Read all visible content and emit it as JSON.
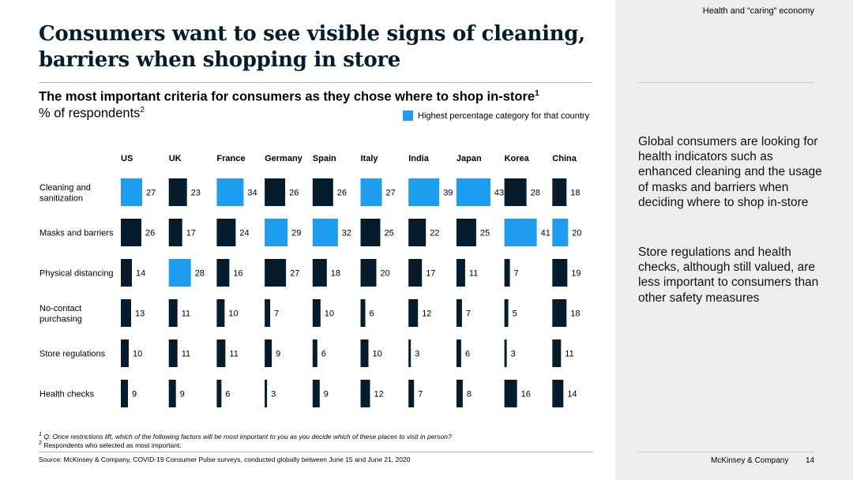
{
  "header": {
    "section": "Health and “caring” economy"
  },
  "title": "Consumers want to see visible signs of cleaning, barriers when shopping in store",
  "subtitle": "The most important criteria for consumers as they chose where to shop in-store",
  "subtitle_sup": "1",
  "unit": "% of respondents",
  "unit_sup": "2",
  "legend": {
    "label": "Highest percentage category for that country"
  },
  "sidebar": {
    "para1": "Global consumers are looking for health indicators such as enhanced cleaning and the usage of masks and barriers when deciding where to shop in-store",
    "para2": "Store regulations and health checks, although still valued, are less important to consumers than other safety measures"
  },
  "footnotes": {
    "fn1_mark": "1",
    "fn1": "Q: Once restrictions lift, which of the following factors will be most important to you as you decide which of these places to visit in person?",
    "fn2_mark": "2",
    "fn2": "Respondents who selected as most important."
  },
  "source": "Source: McKinsey & Company, COVID-19 Consumer Pulse surveys, conducted globally between June 15 and June 21, 2020",
  "footer": {
    "brand": "McKinsey & Company",
    "page": "14"
  },
  "chart_data": {
    "type": "bar",
    "orientation": "horizontal-small-multiples",
    "colors": {
      "default": "#051c2c",
      "highlight": "#1e9cf0"
    },
    "countries": [
      "US",
      "UK",
      "France",
      "Germany",
      "Spain",
      "Italy",
      "India",
      "Japan",
      "Korea",
      "China"
    ],
    "categories": [
      [
        "Cleaning and",
        "sanitization"
      ],
      [
        "Masks and barriers"
      ],
      [
        "Physical distancing"
      ],
      [
        "No-contact",
        "purchasing"
      ],
      [
        "Store regulations"
      ],
      [
        "Health checks"
      ]
    ],
    "series": [
      {
        "name": "US",
        "values": [
          27,
          26,
          14,
          13,
          10,
          9
        ]
      },
      {
        "name": "UK",
        "values": [
          23,
          17,
          28,
          11,
          11,
          9
        ]
      },
      {
        "name": "France",
        "values": [
          34,
          24,
          16,
          10,
          11,
          6
        ]
      },
      {
        "name": "Germany",
        "values": [
          26,
          29,
          27,
          7,
          9,
          3
        ]
      },
      {
        "name": "Spain",
        "values": [
          26,
          32,
          18,
          10,
          6,
          9
        ]
      },
      {
        "name": "Italy",
        "values": [
          27,
          25,
          20,
          6,
          10,
          12
        ]
      },
      {
        "name": "India",
        "values": [
          39,
          22,
          17,
          12,
          3,
          7
        ]
      },
      {
        "name": "Japan",
        "values": [
          43,
          25,
          11,
          7,
          6,
          8
        ]
      },
      {
        "name": "Korea",
        "values": [
          28,
          41,
          7,
          5,
          3,
          16
        ]
      },
      {
        "name": "China",
        "values": [
          18,
          20,
          19,
          18,
          11,
          14
        ]
      }
    ],
    "highlight": "max value per country",
    "legend_position": "top-right",
    "grid": false
  }
}
